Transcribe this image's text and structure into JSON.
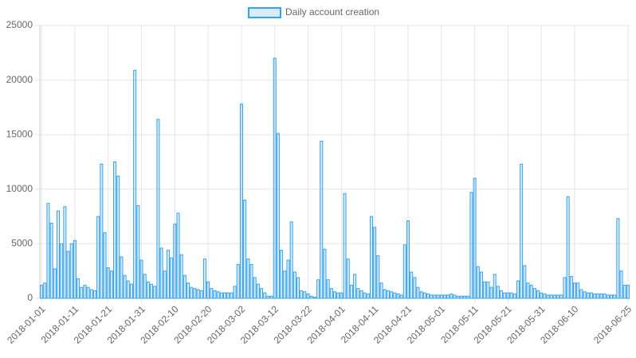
{
  "chart_data": {
    "type": "bar",
    "series": [
      {
        "name": "Daily account creation",
        "color": "#36a2eb",
        "values": [
          1200,
          1400,
          8700,
          6900,
          2700,
          8000,
          5000,
          8400,
          4300,
          5000,
          5300,
          1800,
          1000,
          1200,
          1000,
          800,
          700,
          7500,
          12300,
          6000,
          2800,
          2500,
          12500,
          11200,
          3800,
          2100,
          1600,
          1300,
          20900,
          8500,
          3500,
          2200,
          1500,
          1300,
          1100,
          16400,
          4600,
          2500,
          4400,
          3700,
          6800,
          7800,
          4000,
          2100,
          1400,
          1000,
          900,
          800,
          700,
          3600,
          1500,
          900,
          700,
          600,
          500,
          500,
          500,
          500,
          1100,
          3100,
          17800,
          9000,
          3600,
          3100,
          1900,
          1300,
          900,
          500,
          200,
          200,
          22000,
          15100,
          4400,
          2500,
          3500,
          7000,
          2400,
          1900,
          700,
          600,
          400,
          200,
          100,
          1700,
          14400,
          4500,
          1700,
          900,
          600,
          500,
          500,
          9600,
          3600,
          1200,
          2200,
          900,
          700,
          500,
          400,
          7500,
          6500,
          3900,
          1400,
          800,
          700,
          600,
          500,
          400,
          300,
          4900,
          7100,
          2400,
          1900,
          1000,
          600,
          500,
          400,
          300,
          300,
          300,
          300,
          300,
          300,
          400,
          300,
          200,
          200,
          200,
          200,
          9700,
          11000,
          2900,
          2400,
          1500,
          1500,
          1000,
          2200,
          1100,
          700,
          500,
          500,
          500,
          400,
          1600,
          12300,
          3000,
          1400,
          1200,
          900,
          700,
          500,
          400,
          300,
          300,
          300,
          300,
          300,
          1900,
          9300,
          2000,
          1400,
          1400,
          800,
          600,
          500,
          500,
          400,
          400,
          400,
          400,
          300,
          300,
          300,
          7300,
          2500,
          1200,
          1200
        ]
      }
    ],
    "categories": [
      "2018-01-01",
      null,
      null,
      null,
      null,
      null,
      null,
      null,
      null,
      null,
      "2018-01-11",
      null,
      null,
      null,
      null,
      null,
      null,
      null,
      null,
      null,
      "2018-01-21",
      null,
      null,
      null,
      null,
      null,
      null,
      null,
      null,
      null,
      "2018-01-31",
      null,
      null,
      null,
      null,
      null,
      null,
      null,
      null,
      null,
      "2018-02-10",
      null,
      null,
      null,
      null,
      null,
      null,
      null,
      null,
      null,
      "2018-02-20",
      null,
      null,
      null,
      null,
      null,
      null,
      null,
      null,
      null,
      "2018-03-02",
      null,
      null,
      null,
      null,
      null,
      null,
      null,
      null,
      null,
      "2018-03-12",
      null,
      null,
      null,
      null,
      null,
      null,
      null,
      null,
      null,
      "2018-03-22",
      null,
      null,
      null,
      null,
      null,
      null,
      null,
      null,
      null,
      "2018-04-01",
      null,
      null,
      null,
      null,
      null,
      null,
      null,
      null,
      null,
      "2018-04-11",
      null,
      null,
      null,
      null,
      null,
      null,
      null,
      null,
      null,
      "2018-04-21",
      null,
      null,
      null,
      null,
      null,
      null,
      null,
      null,
      null,
      "2018-05-01",
      null,
      null,
      null,
      null,
      null,
      null,
      null,
      null,
      null,
      "2018-05-11",
      null,
      null,
      null,
      null,
      null,
      null,
      null,
      null,
      null,
      "2018-05-21",
      null,
      null,
      null,
      null,
      null,
      null,
      null,
      null,
      null,
      "2018-05-31",
      null,
      null,
      null,
      null,
      null,
      null,
      null,
      null,
      null,
      "2018-06-10",
      null,
      null,
      null,
      null,
      null,
      null,
      null,
      null,
      null,
      null,
      null,
      null,
      null,
      null,
      null,
      "2018-06-25"
    ],
    "ylim": [
      0,
      25000
    ],
    "yticks": [
      0,
      5000,
      10000,
      15000,
      20000,
      25000
    ],
    "grid": true,
    "legend": "top"
  }
}
